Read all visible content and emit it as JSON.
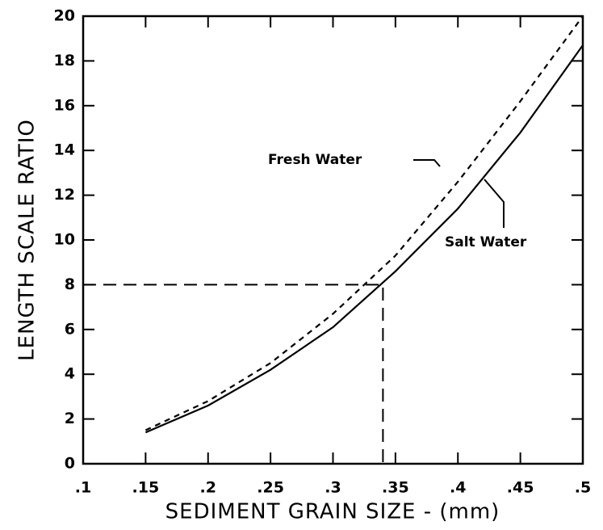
{
  "chart_data": {
    "type": "line",
    "xlabel": "SEDIMENT GRAIN SIZE - (mm)",
    "ylabel": "LENGTH SCALE RATIO",
    "x": [
      0.15,
      0.2,
      0.25,
      0.3,
      0.35,
      0.4,
      0.45,
      0.5
    ],
    "series": [
      {
        "name": "Fresh Water",
        "color": "#000000",
        "dash": true,
        "values": [
          1.5,
          2.8,
          4.5,
          6.7,
          9.3,
          12.6,
          16.2,
          20
        ]
      },
      {
        "name": "Salt Water",
        "color": "#000000",
        "dash": false,
        "values": [
          1.4,
          2.6,
          4.2,
          6.1,
          8.6,
          11.4,
          14.8,
          18.7
        ]
      }
    ],
    "reference": {
      "x": 0.34,
      "y": 8
    },
    "xlim": [
      0.1,
      0.5
    ],
    "xticks": [
      {
        "value": 0.1,
        "label": ".1"
      },
      {
        "value": 0.15,
        "label": ".15"
      },
      {
        "value": 0.2,
        "label": ".2"
      },
      {
        "value": 0.25,
        "label": ".25"
      },
      {
        "value": 0.3,
        "label": ".3"
      },
      {
        "value": 0.35,
        "label": ".35"
      },
      {
        "value": 0.4,
        "label": ".4"
      },
      {
        "value": 0.45,
        "label": ".45"
      },
      {
        "value": 0.5,
        "label": ".5"
      }
    ],
    "ylim": [
      0,
      20
    ],
    "yticks": [
      0,
      2,
      4,
      6,
      8,
      10,
      12,
      14,
      16,
      18,
      20
    ],
    "grid": false
  }
}
